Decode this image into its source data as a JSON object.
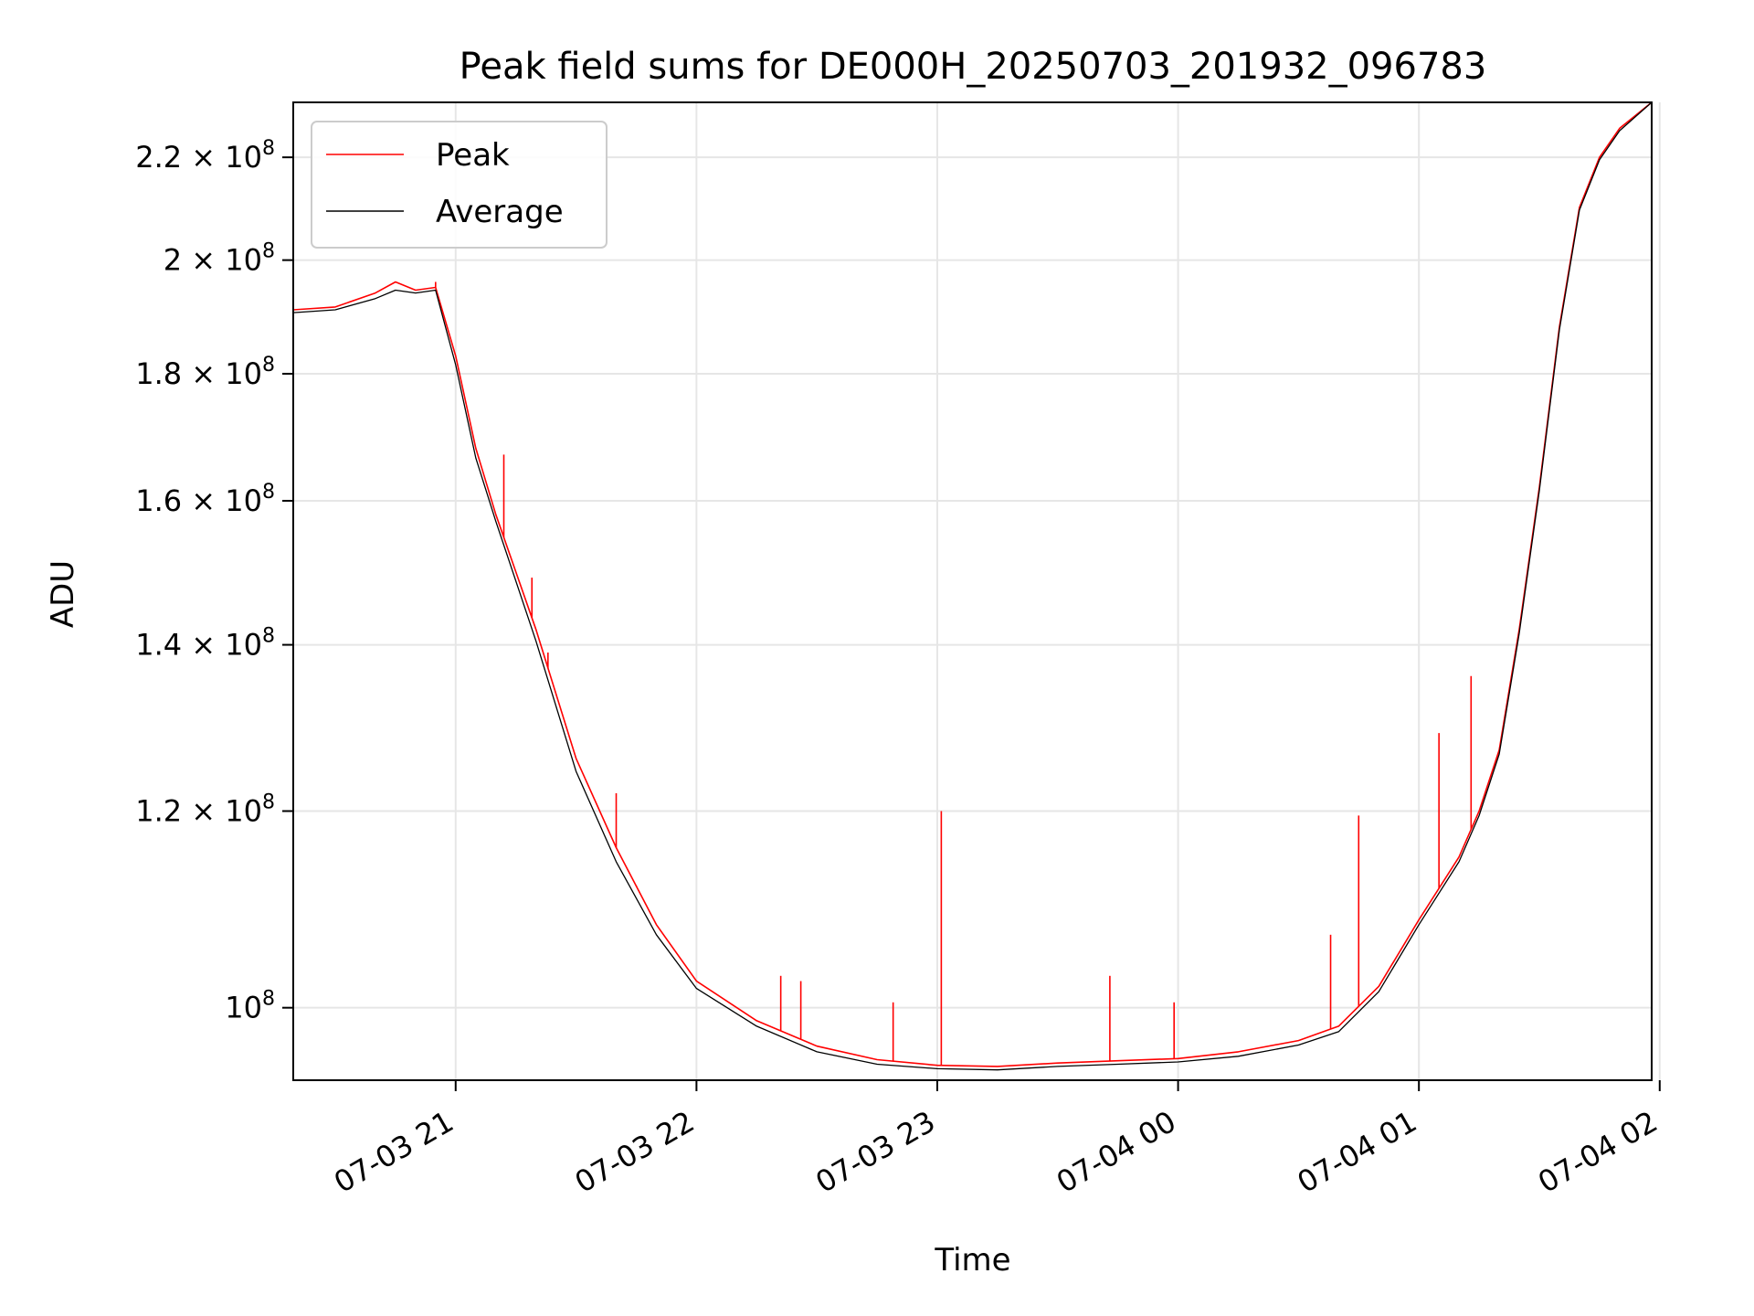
{
  "chart_data": {
    "type": "line",
    "title": "Peak field sums for DE000H_20250703_201932_096783",
    "xlabel": "Time",
    "ylabel": "ADU",
    "x_scale": "time",
    "y_scale": "log",
    "xlim": [
      "2025-07-03T20:19:32",
      "2025-07-04T01:58:00"
    ],
    "ylim": [
      93500000,
      231500000
    ],
    "grid": true,
    "legend_position": "top-left",
    "x_ticks": [
      {
        "value": "2025-07-03T21:00:00",
        "label": "07-03 21"
      },
      {
        "value": "2025-07-03T22:00:00",
        "label": "07-03 22"
      },
      {
        "value": "2025-07-03T23:00:00",
        "label": "07-03 23"
      },
      {
        "value": "2025-07-04T00:00:00",
        "label": "07-04 00"
      },
      {
        "value": "2025-07-04T01:00:00",
        "label": "07-04 01"
      },
      {
        "value": "2025-07-04T02:00:00",
        "label": "07-04 02"
      }
    ],
    "y_ticks": [
      {
        "value": 100000000,
        "mantissa": "",
        "exponent": "8"
      },
      {
        "value": 120000000,
        "mantissa": "1.2",
        "exponent": "8"
      },
      {
        "value": 140000000,
        "mantissa": "1.4",
        "exponent": "8"
      },
      {
        "value": 160000000,
        "mantissa": "1.6",
        "exponent": "8"
      },
      {
        "value": 180000000,
        "mantissa": "1.8",
        "exponent": "8"
      },
      {
        "value": 200000000,
        "mantissa": "2",
        "exponent": "8"
      },
      {
        "value": 220000000,
        "mantissa": "2.2",
        "exponent": "8"
      }
    ],
    "series": [
      {
        "name": "Peak",
        "color": "#ff0000",
        "x": [
          "2025-07-03T20:19:32",
          "2025-07-03T20:30:00",
          "2025-07-03T20:40:00",
          "2025-07-03T20:45:00",
          "2025-07-03T20:50:00",
          "2025-07-03T20:55:00",
          "2025-07-03T21:00:00",
          "2025-07-03T21:05:00",
          "2025-07-03T21:10:00",
          "2025-07-03T21:20:00",
          "2025-07-03T21:30:00",
          "2025-07-03T21:40:00",
          "2025-07-03T21:50:00",
          "2025-07-03T22:00:00",
          "2025-07-03T22:15:00",
          "2025-07-03T22:30:00",
          "2025-07-03T22:45:00",
          "2025-07-03T23:00:00",
          "2025-07-03T23:15:00",
          "2025-07-03T23:30:00",
          "2025-07-03T23:45:00",
          "2025-07-04T00:00:00",
          "2025-07-04T00:15:00",
          "2025-07-04T00:30:00",
          "2025-07-04T00:40:00",
          "2025-07-04T00:50:00",
          "2025-07-04T01:00:00",
          "2025-07-04T01:10:00",
          "2025-07-04T01:15:00",
          "2025-07-04T01:20:00",
          "2025-07-04T01:25:00",
          "2025-07-04T01:30:00",
          "2025-07-04T01:35:00",
          "2025-07-04T01:40:00",
          "2025-07-04T01:45:00",
          "2025-07-04T01:50:00",
          "2025-07-04T01:58:00"
        ],
        "y": [
          191000000,
          191500000,
          194000000,
          196000000,
          194500000,
          195000000,
          183000000,
          168000000,
          158000000,
          142000000,
          126000000,
          116000000,
          108000000,
          102500000,
          98800000,
          96500000,
          95300000,
          94800000,
          94700000,
          95000000,
          95200000,
          95400000,
          96000000,
          97000000,
          98300000,
          102000000,
          108500000,
          115000000,
          120000000,
          127000000,
          142000000,
          162000000,
          188000000,
          210000000,
          220000000,
          226000000,
          231500000
        ],
        "spikes": [
          {
            "x": "2025-07-03T20:55:00",
            "y": 196000000
          },
          {
            "x": "2025-07-03T21:12:00",
            "y": 167000000
          },
          {
            "x": "2025-07-03T21:19:00",
            "y": 149000000
          },
          {
            "x": "2025-07-03T21:23:00",
            "y": 139000000
          },
          {
            "x": "2025-07-03T21:40:00",
            "y": 122000000
          },
          {
            "x": "2025-07-03T21:45:00",
            "y": 112000000
          },
          {
            "x": "2025-07-03T22:21:00",
            "y": 103000000
          },
          {
            "x": "2025-07-03T22:26:00",
            "y": 102500000
          },
          {
            "x": "2025-07-03T22:49:00",
            "y": 100500000
          },
          {
            "x": "2025-07-03T23:01:00",
            "y": 120000000
          },
          {
            "x": "2025-07-03T23:43:00",
            "y": 103000000
          },
          {
            "x": "2025-07-03T23:59:00",
            "y": 100500000
          },
          {
            "x": "2025-07-04T00:38:00",
            "y": 107000000
          },
          {
            "x": "2025-07-04T00:45:00",
            "y": 119500000
          },
          {
            "x": "2025-07-04T01:05:00",
            "y": 129000000
          },
          {
            "x": "2025-07-04T01:13:00",
            "y": 136000000
          }
        ]
      },
      {
        "name": "Average",
        "color": "#000000",
        "x": [
          "2025-07-03T20:19:32",
          "2025-07-03T20:30:00",
          "2025-07-03T20:40:00",
          "2025-07-03T20:45:00",
          "2025-07-03T20:50:00",
          "2025-07-03T20:55:00",
          "2025-07-03T21:00:00",
          "2025-07-03T21:05:00",
          "2025-07-03T21:10:00",
          "2025-07-03T21:20:00",
          "2025-07-03T21:30:00",
          "2025-07-03T21:40:00",
          "2025-07-03T21:50:00",
          "2025-07-03T22:00:00",
          "2025-07-03T22:15:00",
          "2025-07-03T22:30:00",
          "2025-07-03T22:45:00",
          "2025-07-03T23:00:00",
          "2025-07-03T23:15:00",
          "2025-07-03T23:30:00",
          "2025-07-03T23:45:00",
          "2025-07-04T00:00:00",
          "2025-07-04T00:15:00",
          "2025-07-04T00:30:00",
          "2025-07-04T00:40:00",
          "2025-07-04T00:50:00",
          "2025-07-04T01:00:00",
          "2025-07-04T01:10:00",
          "2025-07-04T01:15:00",
          "2025-07-04T01:20:00",
          "2025-07-04T01:25:00",
          "2025-07-04T01:30:00",
          "2025-07-04T01:35:00",
          "2025-07-04T01:40:00",
          "2025-07-04T01:45:00",
          "2025-07-04T01:50:00",
          "2025-07-04T01:58:00"
        ],
        "y": [
          190500000,
          191000000,
          193000000,
          194500000,
          194000000,
          194500000,
          181500000,
          166500000,
          157000000,
          140500000,
          124500000,
          114500000,
          107000000,
          101800000,
          98300000,
          96000000,
          94900000,
          94500000,
          94400000,
          94700000,
          94900000,
          95100000,
          95600000,
          96600000,
          97800000,
          101500000,
          108000000,
          114500000,
          119500000,
          126500000,
          141500000,
          161500000,
          187500000,
          209500000,
          219500000,
          225500000,
          231500000
        ]
      }
    ]
  }
}
